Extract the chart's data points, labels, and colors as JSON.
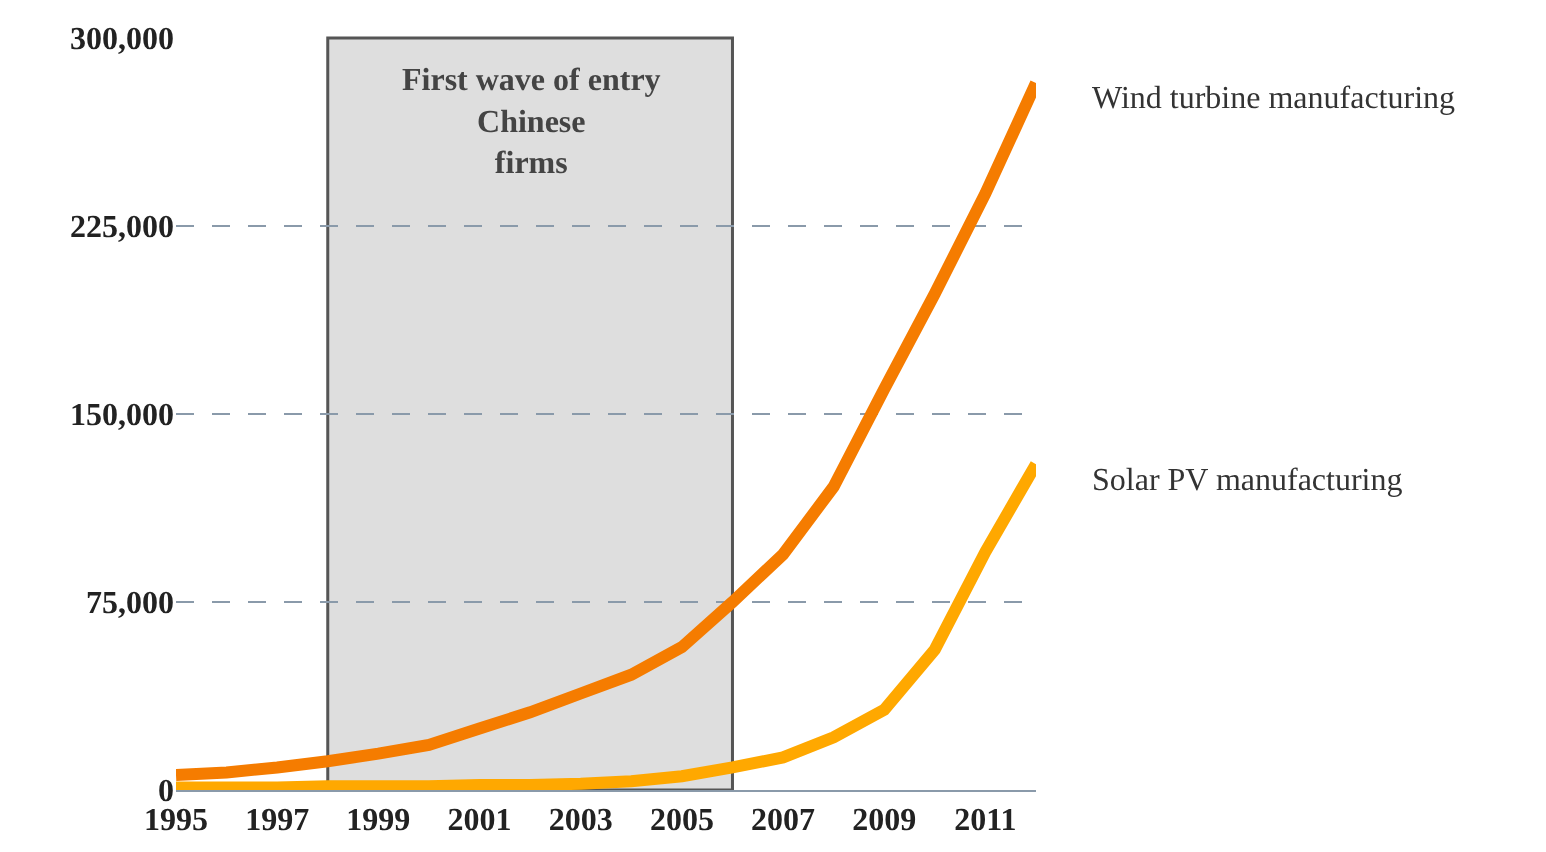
{
  "chart_data": {
    "type": "line",
    "x": [
      1995,
      1996,
      1997,
      1998,
      1999,
      2000,
      2001,
      2002,
      2003,
      2004,
      2005,
      2006,
      2007,
      2008,
      2009,
      2010,
      2011,
      2012
    ],
    "series": [
      {
        "name": "Wind turbine manufacturing",
        "color": "#f57c00",
        "values": [
          6000,
          7000,
          9000,
          11500,
          14500,
          18000,
          24500,
          31000,
          38500,
          46000,
          57000,
          75000,
          94000,
          121000,
          160000,
          198000,
          238000,
          282000
        ]
      },
      {
        "name": "Solar PV manufacturing",
        "color": "#ffa800",
        "values": [
          1000,
          1000,
          1000,
          1500,
          1500,
          1500,
          2000,
          2000,
          2500,
          3500,
          5500,
          9000,
          13000,
          21000,
          32000,
          56000,
          95000,
          130000
        ]
      }
    ],
    "xlim": [
      1995,
      2012
    ],
    "xticks": [
      1995,
      1997,
      1999,
      2001,
      2003,
      2005,
      2007,
      2009,
      2011
    ],
    "ylim": [
      0,
      300000
    ],
    "yticks": [
      {
        "value": 0,
        "label": "0"
      },
      {
        "value": 75000,
        "label": "75,000"
      },
      {
        "value": 150000,
        "label": "150,000"
      },
      {
        "value": 225000,
        "label": "225,000"
      },
      {
        "value": 300000,
        "label": "300,000"
      }
    ],
    "grid": "y",
    "legend": false,
    "marker": "none",
    "line_style": "solid",
    "bands": [
      {
        "axis": "x",
        "from": 1998,
        "to": 2006,
        "label": "First wave of entry\nChinese\nfirms",
        "color": "#dedede"
      }
    ]
  }
}
